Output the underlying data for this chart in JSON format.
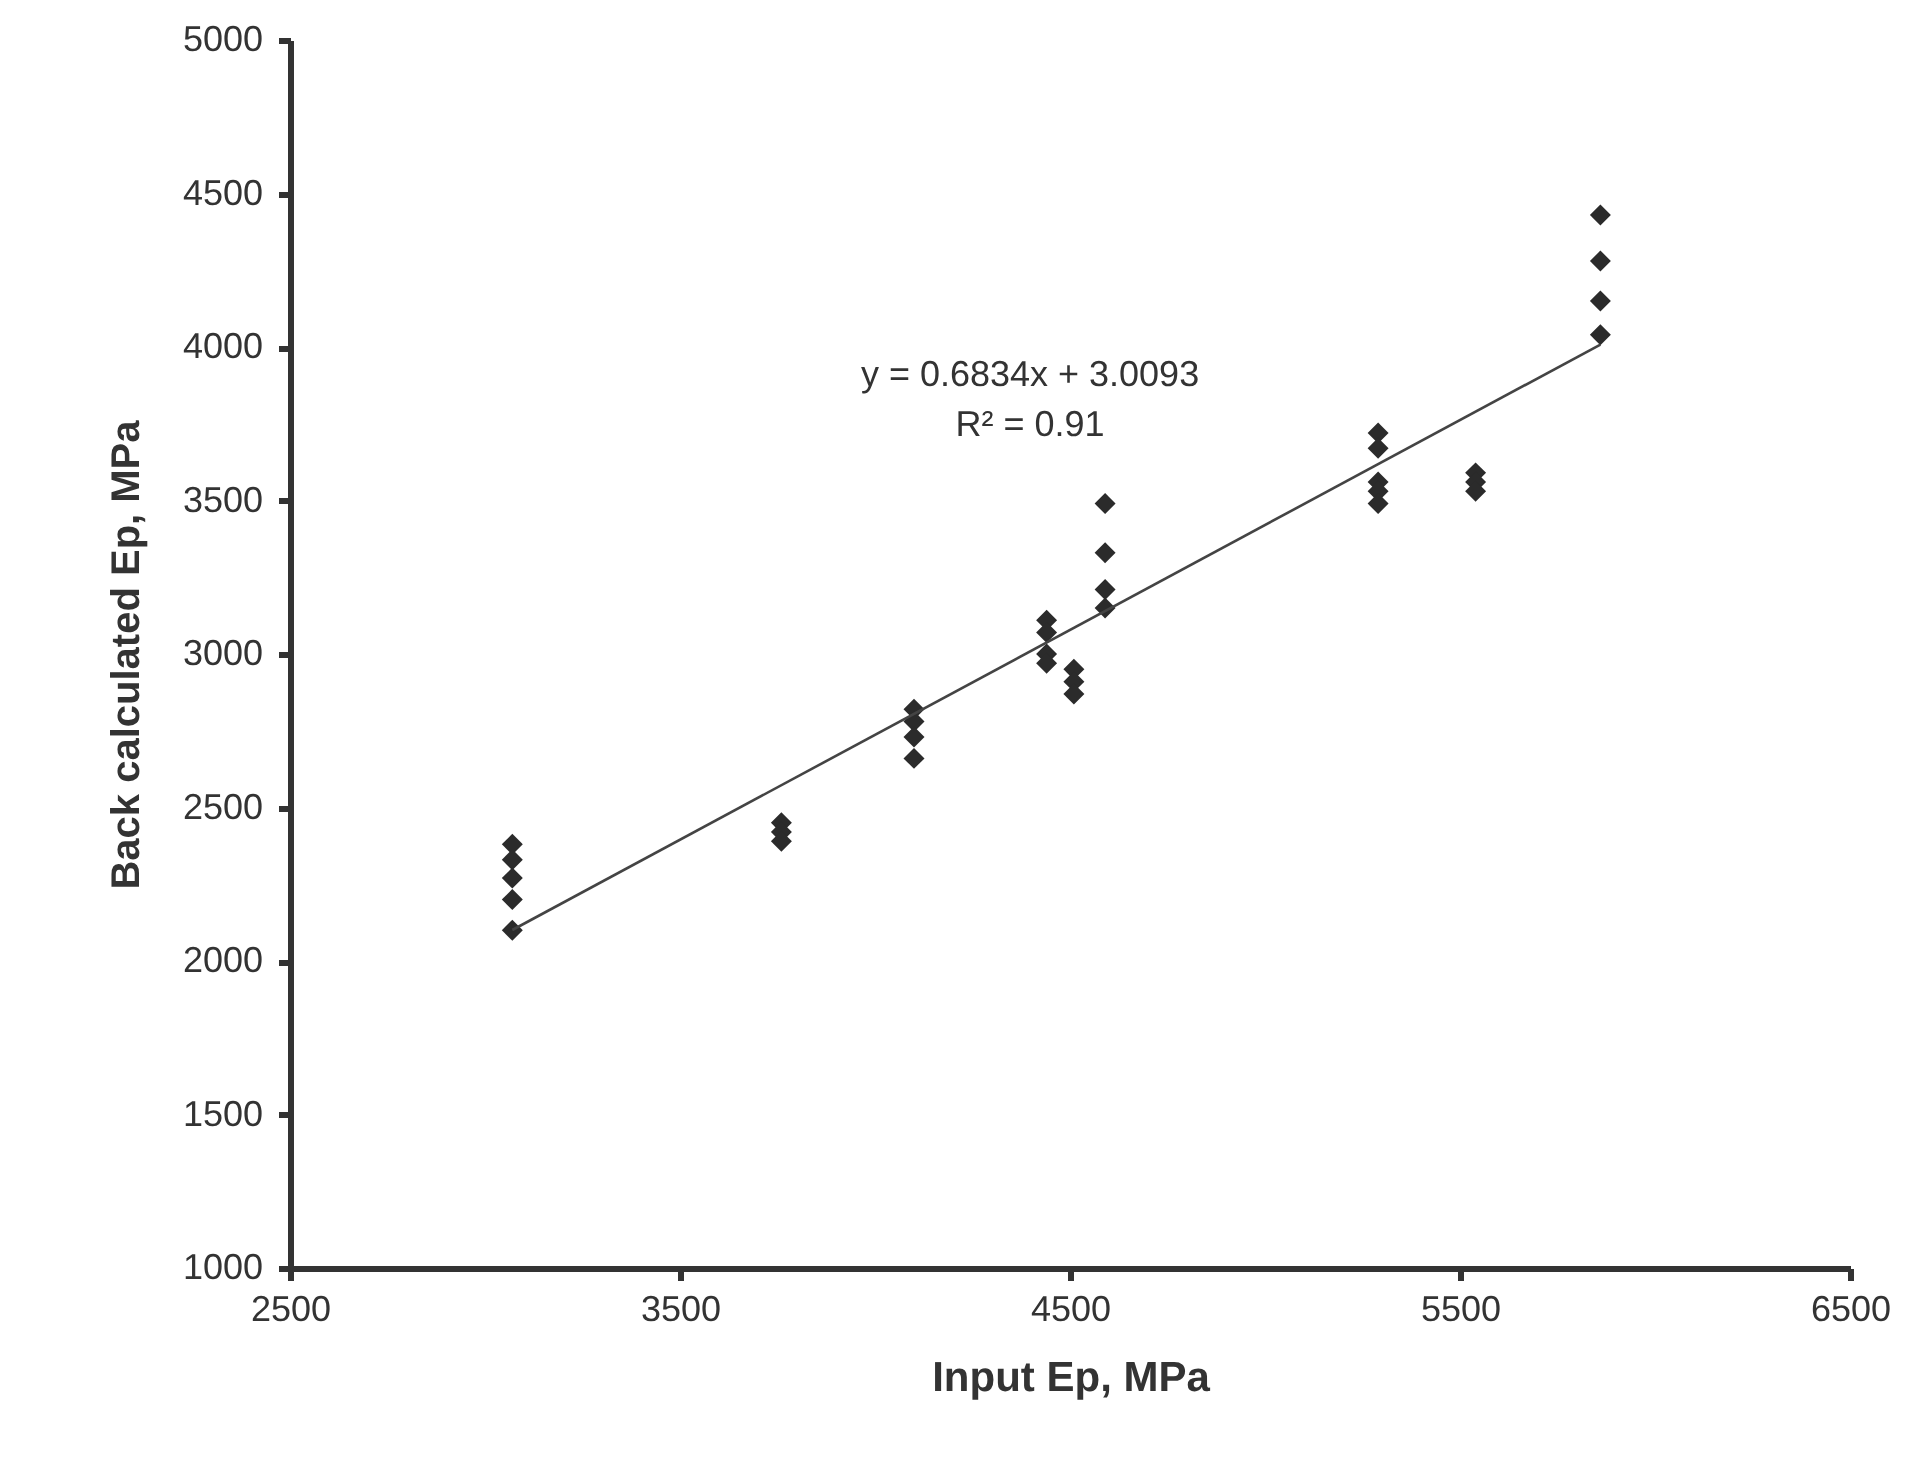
{
  "chart_data": {
    "type": "scatter",
    "xlabel": "Input Ep, MPa",
    "ylabel": "Back calculated Ep, MPa",
    "xlim": [
      2500,
      6500
    ],
    "xticks": [
      2500,
      3500,
      4500,
      5500,
      6500
    ],
    "ylim": [
      1000,
      5000
    ],
    "yticks": [
      1000,
      1500,
      2000,
      2500,
      3000,
      3500,
      4000,
      4500,
      5000
    ],
    "grid": false,
    "marker": "diamond",
    "annotations": [
      "y = 0.6834x + 3.0093",
      "R² = 0.91"
    ],
    "series": [
      {
        "color": "#2b2b2b",
        "x": [
          3070,
          3070,
          3070,
          3070,
          3070,
          3760,
          3760,
          3760,
          4100,
          4100,
          4100,
          4100,
          4440,
          4440,
          4440,
          4440,
          4510,
          4510,
          4510,
          4590,
          4590,
          4590,
          4590,
          5290,
          5290,
          5290,
          5290,
          5290,
          5540,
          5540,
          5540,
          5860,
          5860,
          5860,
          5860
        ],
        "values": [
          2380,
          2330,
          2270,
          2200,
          2100,
          2450,
          2420,
          2390,
          2820,
          2780,
          2730,
          2660,
          3110,
          3070,
          3000,
          2970,
          2950,
          2910,
          2870,
          3490,
          3330,
          3210,
          3150,
          3720,
          3670,
          3560,
          3530,
          3490,
          3590,
          3560,
          3530,
          4430,
          4280,
          4150,
          4040
        ]
      },
      {
        "type": "line",
        "color": "#444444",
        "line_style": "solid",
        "marker": "none",
        "x": [
          3070,
          5860
        ],
        "values": [
          2101,
          4008
        ]
      }
    ]
  }
}
